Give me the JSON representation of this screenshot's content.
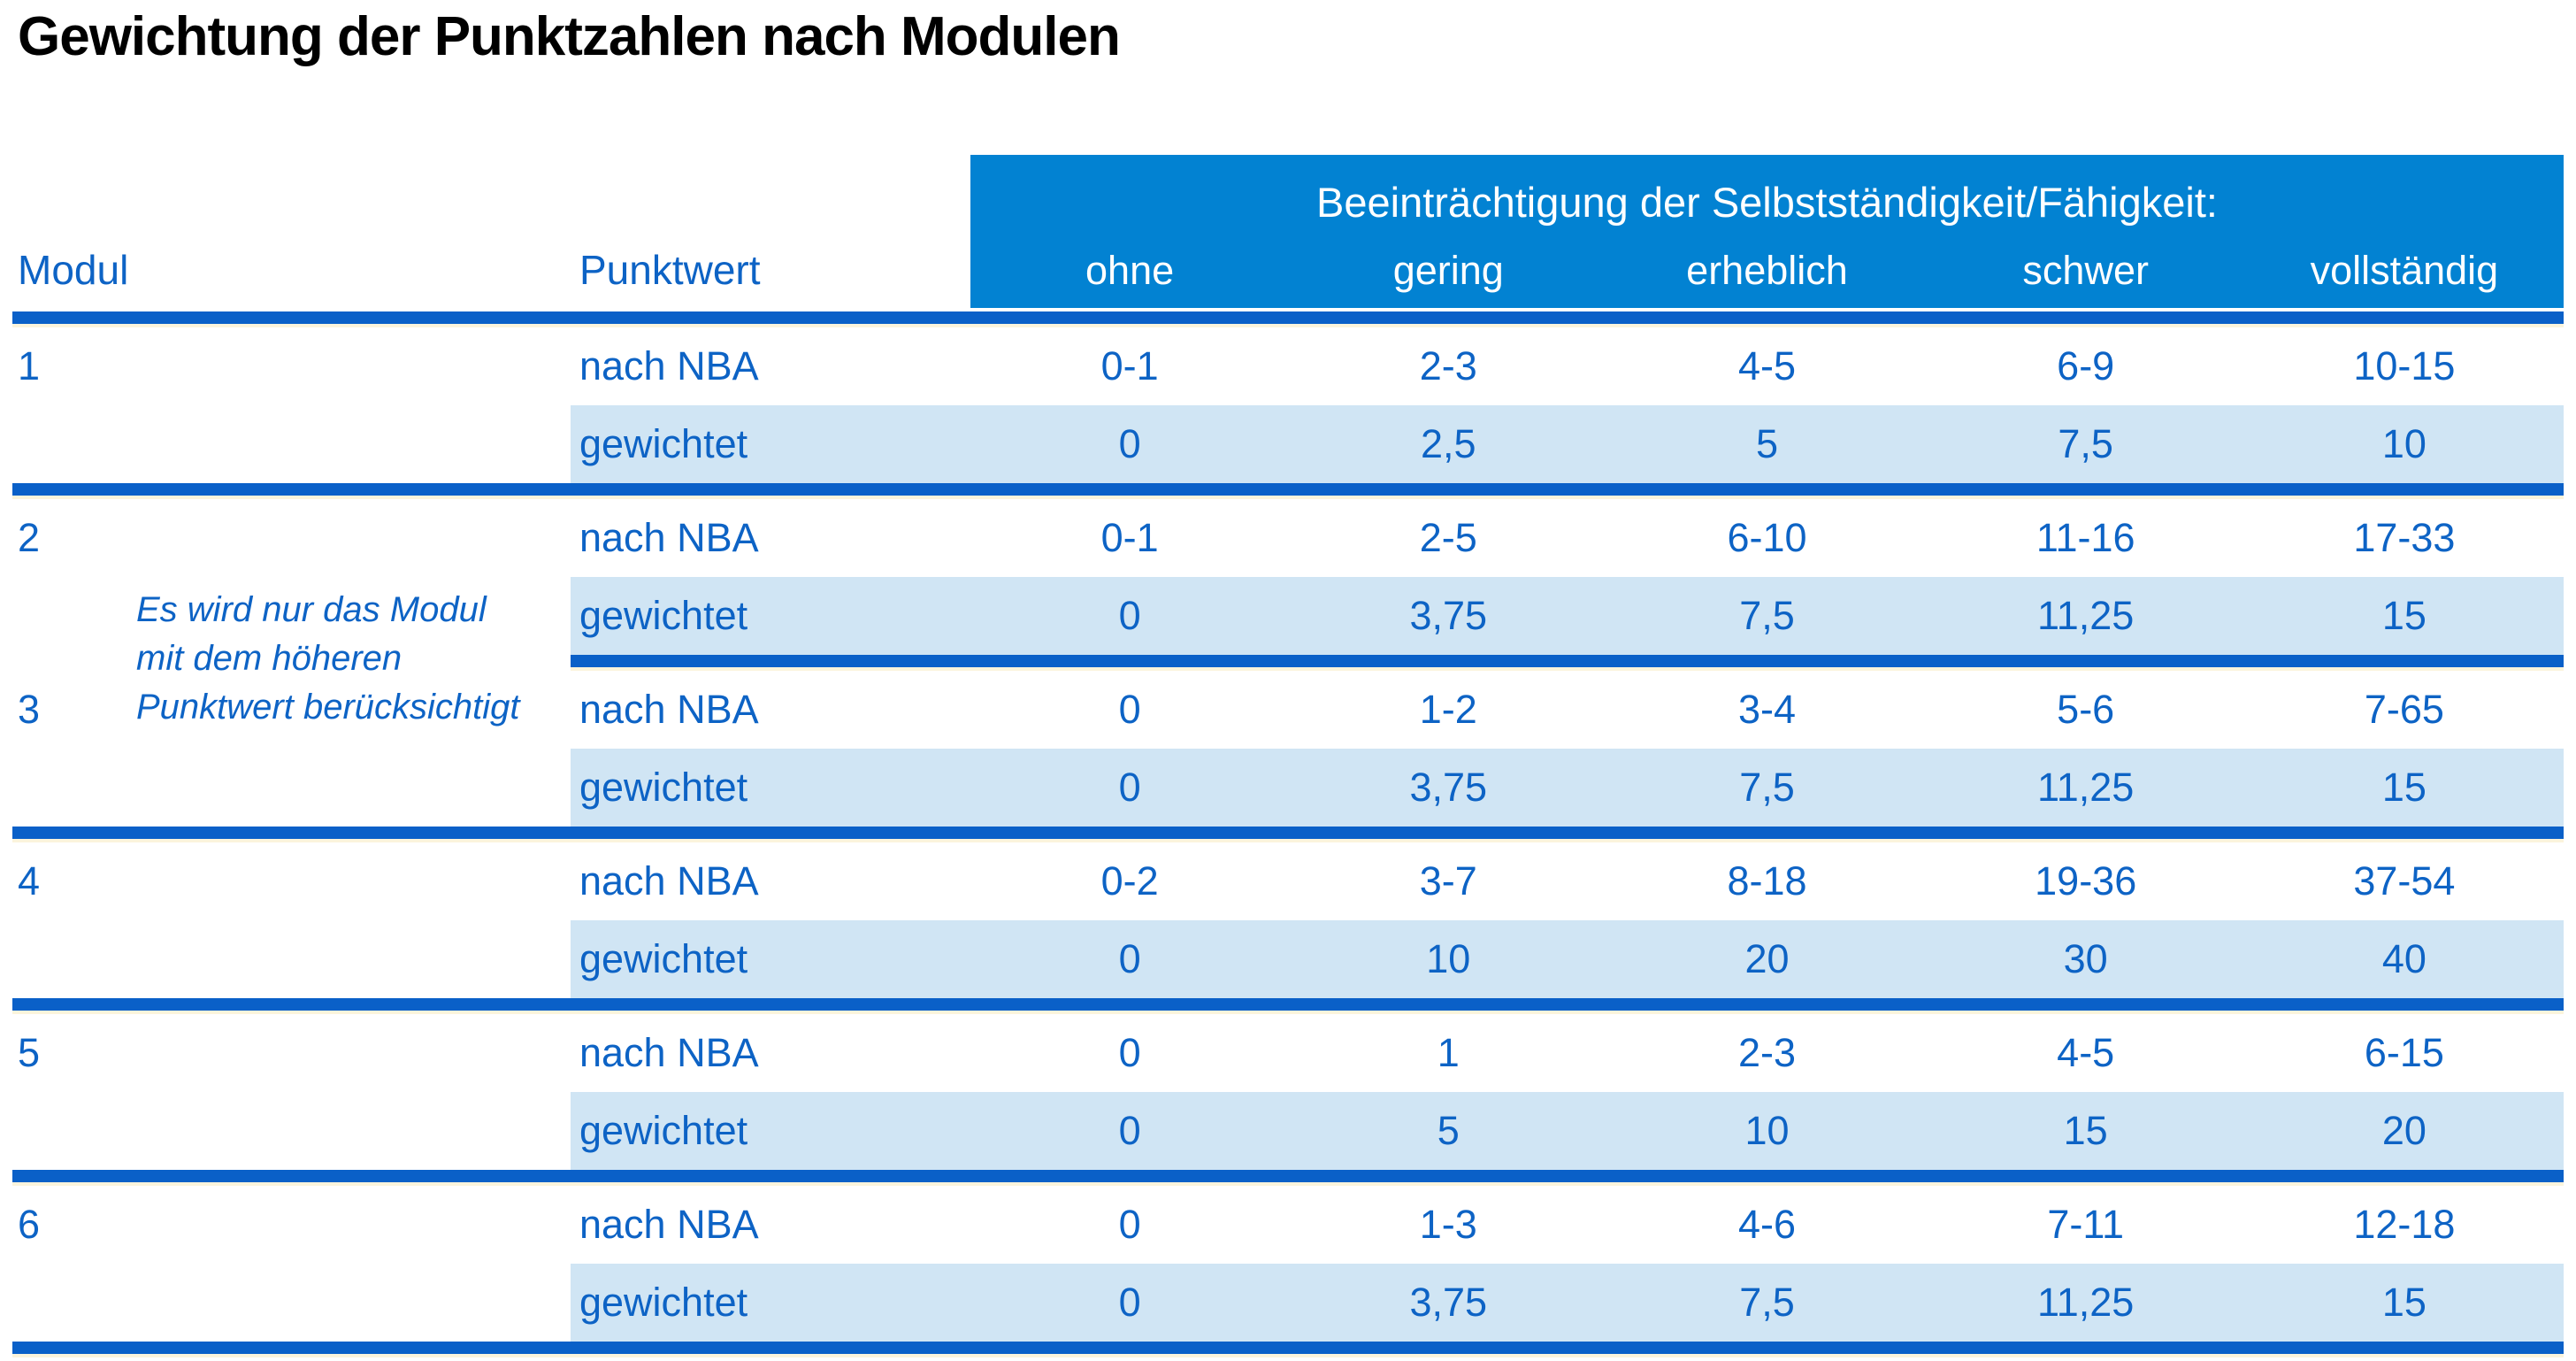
{
  "title": "Gewichtung der Punktzahlen nach Modulen",
  "table": {
    "header": {
      "modul": "Modul",
      "punktwert": "Punktwert",
      "group": "Beeinträchtigung der Selbstständigkeit/Fähigkeit:",
      "severity": [
        "ohne",
        "gering",
        "erheblich",
        "schwer",
        "vollständig"
      ]
    },
    "row_labels": {
      "nba": "nach NBA",
      "weighted": "gewichtet"
    },
    "note": {
      "line1": "Es wird nur das Modul",
      "line2": "mit dem höheren",
      "line3": "Punktwert berücksichtigt"
    },
    "modules": [
      {
        "id": "1",
        "nba": [
          "0-1",
          "2-3",
          "4-5",
          "6-9",
          "10-15"
        ],
        "weighted": [
          "0",
          "2,5",
          "5",
          "7,5",
          "10"
        ]
      },
      {
        "id": "2",
        "nba": [
          "0-1",
          "2-5",
          "6-10",
          "11-16",
          "17-33"
        ],
        "weighted": [
          "0",
          "3,75",
          "7,5",
          "11,25",
          "15"
        ]
      },
      {
        "id": "3",
        "nba": [
          "0",
          "1-2",
          "3-4",
          "5-6",
          "7-65"
        ],
        "weighted": [
          "0",
          "3,75",
          "7,5",
          "11,25",
          "15"
        ]
      },
      {
        "id": "4",
        "nba": [
          "0-2",
          "3-7",
          "8-18",
          "19-36",
          "37-54"
        ],
        "weighted": [
          "0",
          "10",
          "20",
          "30",
          "40"
        ]
      },
      {
        "id": "5",
        "nba": [
          "0",
          "1",
          "2-3",
          "4-5",
          "6-15"
        ],
        "weighted": [
          "0",
          "5",
          "10",
          "15",
          "20"
        ]
      },
      {
        "id": "6",
        "nba": [
          "0",
          "1-3",
          "4-6",
          "7-11",
          "12-18"
        ],
        "weighted": [
          "0",
          "3,75",
          "7,5",
          "11,25",
          "15"
        ]
      }
    ],
    "colors": {
      "header_band": "#0282D2",
      "rule": "#0A60C8",
      "text": "#0D63C5",
      "weighted_row_tint": "#D0E5F4",
      "hairline": "#FBF4DC",
      "title": "#000000"
    }
  }
}
